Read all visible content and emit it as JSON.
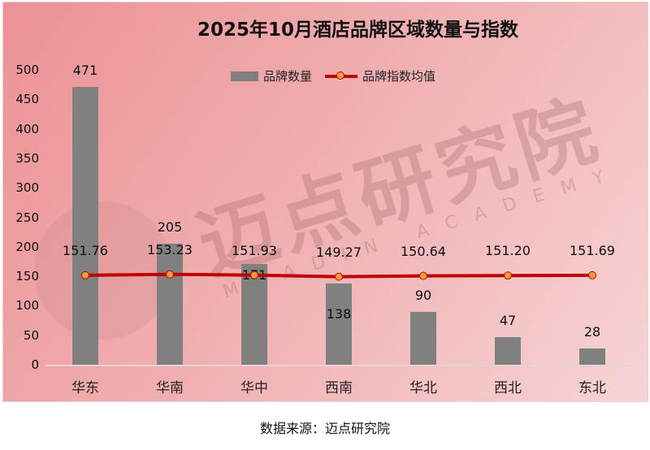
{
  "title": "2025年10月酒店品牌区域数量与指数",
  "legend": {
    "bar": "品牌数量",
    "line": "品牌指数均值"
  },
  "watermark": {
    "cn": "迈点研究院",
    "en": "MEADIN ACADEMY"
  },
  "source": "数据来源：迈点研究院",
  "y_ticks": [
    "500",
    "450",
    "400",
    "350",
    "300",
    "250",
    "200",
    "150",
    "100",
    "50",
    "0"
  ],
  "colors": {
    "bar": "#808080",
    "line": "#c00000",
    "marker": "#f39c3c"
  },
  "chart_data": {
    "type": "bar",
    "title": "2025年10月酒店品牌区域数量与指数",
    "xlabel": "",
    "ylabel": "",
    "ylim": [
      0,
      500
    ],
    "categories": [
      "华东",
      "华南",
      "华中",
      "西南",
      "华北",
      "西北",
      "东北"
    ],
    "series": [
      {
        "name": "品牌数量",
        "type": "bar",
        "values": [
          471,
          205,
          171,
          138,
          90,
          47,
          28
        ]
      },
      {
        "name": "品牌指数均值",
        "type": "line",
        "values": [
          151.76,
          153.23,
          151.93,
          149.27,
          150.64,
          151.2,
          151.69
        ]
      }
    ],
    "legend_position": "top",
    "grid": false
  },
  "bars": [
    {
      "cat": "华东",
      "count": "471",
      "index": "151.76"
    },
    {
      "cat": "华南",
      "count": "205",
      "index": "153.23"
    },
    {
      "cat": "华中",
      "count": "171",
      "index": "151.93"
    },
    {
      "cat": "西南",
      "count": "138",
      "index": "149.27"
    },
    {
      "cat": "华北",
      "count": "90",
      "index": "150.64"
    },
    {
      "cat": "西北",
      "count": "47",
      "index": "151.20"
    },
    {
      "cat": "东北",
      "count": "28",
      "index": "151.69"
    }
  ]
}
